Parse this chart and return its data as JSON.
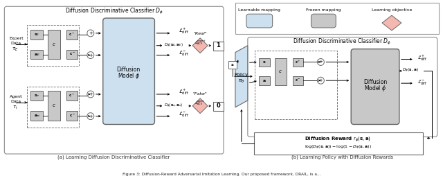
{
  "fig_width": 6.4,
  "fig_height": 2.64,
  "dpi": 100,
  "background_color": "#ffffff",
  "subcaption_a": "(a) Learning Diffusion Discriminative Classifier",
  "subcaption_b": "(b) Learning Policy with Diffusion Rewards",
  "caption_text": "Figure 3: Diffusion-Reward Adversarial Imitation Learning. Our proposed framework, DRAIL, is a",
  "learnable_color": "#cde0f0",
  "frozen_color": "#c8c8c8",
  "objective_color": "#f5b8b0",
  "panel_ec": "#999999",
  "box_ec": "#666666"
}
